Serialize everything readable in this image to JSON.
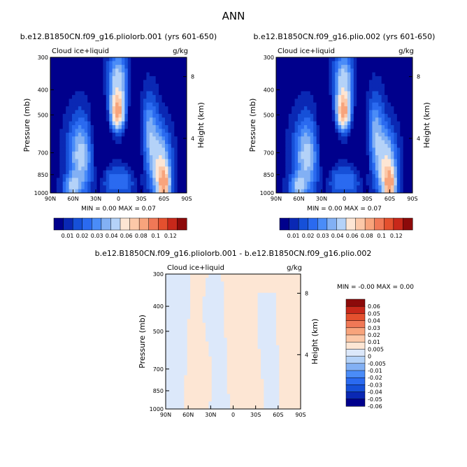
{
  "page": {
    "season": "ANN"
  },
  "colors": {
    "panel_scale": [
      "#00008c",
      "#0a28b4",
      "#1650d8",
      "#2a6af0",
      "#4a8cf8",
      "#82b0f4",
      "#b4d2f8",
      "#fde6d4",
      "#fcc8a8",
      "#f8a47c",
      "#f07856",
      "#e4502e",
      "#c8281a",
      "#8c0a0a"
    ],
    "diff_scale": [
      "#00008c",
      "#0a28b4",
      "#1650d8",
      "#2a6af0",
      "#4a8cf8",
      "#82b0f4",
      "#b4d2f8",
      "#dce8fa",
      "#fde6d4",
      "#fcc8a8",
      "#f8a47c",
      "#f07856",
      "#e4502e",
      "#c8281a",
      "#8c0a0a"
    ]
  },
  "chart_data": [
    {
      "type": "heatmap",
      "title": "b.e12.B1850CN.f09_g16.pliolorb.001 (yrs 601-650)",
      "subtitle_left": "Cloud ice+liquid",
      "subtitle_right": "g/kg",
      "ylabel": "Pressure (mb)",
      "ylabel_right": "Height (km)",
      "x_ticks": [
        "90N",
        "60N",
        "30N",
        "0",
        "30S",
        "60S",
        "90S"
      ],
      "y_ticks": [
        "300",
        "400",
        "500",
        "700",
        "850",
        "1000"
      ],
      "y_right_ticks": [
        "8",
        "4"
      ],
      "stats": "MIN =    0.00   MAX =    0.07",
      "legend_levels": [
        "0.01",
        "0.02",
        "0.03",
        "0.04",
        "0.06",
        "0.08",
        "0.1",
        "0.12"
      ]
    },
    {
      "type": "heatmap",
      "title": "b.e12.B1850CN.f09_g16.plio.002 (yrs 601-650)",
      "subtitle_left": "Cloud ice+liquid",
      "subtitle_right": "g/kg",
      "ylabel": "Pressure (mb)",
      "ylabel_right": "Height (km)",
      "x_ticks": [
        "90N",
        "60N",
        "30N",
        "0",
        "30S",
        "60S",
        "90S"
      ],
      "y_ticks": [
        "300",
        "400",
        "500",
        "700",
        "850",
        "1000"
      ],
      "y_right_ticks": [
        "8",
        "4"
      ],
      "stats": "MIN =    0.00   MAX =    0.07",
      "legend_levels": [
        "0.01",
        "0.02",
        "0.03",
        "0.04",
        "0.06",
        "0.08",
        "0.1",
        "0.12"
      ]
    },
    {
      "type": "heatmap",
      "title": "b.e12.B1850CN.f09_g16.pliolorb.001 - b.e12.B1850CN.f09_g16.plio.002",
      "subtitle_left": "Cloud ice+liquid",
      "subtitle_right": "g/kg",
      "ylabel": "Pressure (mb)",
      "ylabel_right": "Height (km)",
      "x_ticks": [
        "90N",
        "60N",
        "30N",
        "0",
        "30S",
        "60S",
        "90S"
      ],
      "y_ticks": [
        "300",
        "400",
        "500",
        "700",
        "850",
        "1000"
      ],
      "y_right_ticks": [
        "8",
        "4"
      ],
      "stats": "MIN =   -0.00   MAX =    0.00",
      "legend_levels": [
        "0.06",
        "0.05",
        "0.04",
        "0.03",
        "0.02",
        "0.01",
        "0.005",
        "0",
        "-0.005",
        "-0.01",
        "-0.02",
        "-0.03",
        "-0.04",
        "-0.05",
        "-0.06"
      ]
    }
  ]
}
